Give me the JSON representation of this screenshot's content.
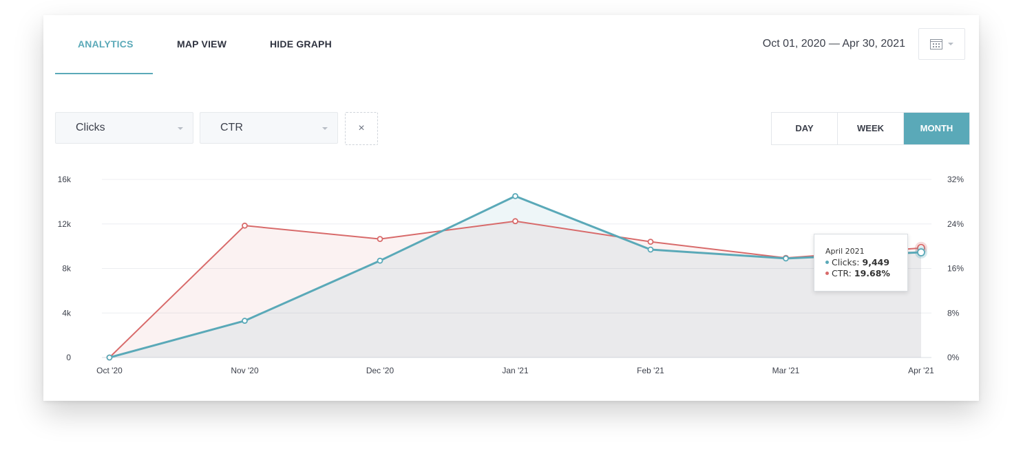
{
  "tabs": [
    {
      "label": "ANALYTICS",
      "active": true
    },
    {
      "label": "MAP VIEW",
      "active": false
    },
    {
      "label": "HIDE GRAPH",
      "active": false
    }
  ],
  "date_range": "Oct 01, 2020 — Apr 30, 2021",
  "calendar_icon": "calendar-icon",
  "metric_selects": [
    {
      "value": "Clicks"
    },
    {
      "value": "CTR"
    }
  ],
  "remove_label": "×",
  "granularity": [
    {
      "label": "DAY",
      "active": false
    },
    {
      "label": "WEEK",
      "active": false
    },
    {
      "label": "MONTH",
      "active": true
    }
  ],
  "colors": {
    "accent": "#5aa9b8",
    "clicks": "#5aa9b8",
    "ctr": "#d86a6a"
  },
  "tooltip": {
    "title": "April 2021",
    "clicks_label": "Clicks:",
    "clicks_value": "9,449",
    "ctr_label": "CTR:",
    "ctr_value": "19.68%"
  },
  "chart_data": {
    "type": "line",
    "categories": [
      "Oct '20",
      "Nov '20",
      "Dec '20",
      "Jan '21",
      "Feb '21",
      "Mar '21",
      "Apr '21"
    ],
    "series": [
      {
        "name": "Clicks",
        "axis": "left",
        "values": [
          0,
          3300,
          8700,
          14500,
          9700,
          8900,
          9449
        ]
      },
      {
        "name": "CTR",
        "axis": "right",
        "values": [
          0,
          23.7,
          21.3,
          24.5,
          20.8,
          17.9,
          19.68
        ]
      }
    ],
    "y_left": {
      "min": 0,
      "max": 16000,
      "ticks": [
        "0",
        "4k",
        "8k",
        "12k",
        "16k"
      ]
    },
    "y_right": {
      "min": 0,
      "max": 32,
      "ticks": [
        "0%",
        "8%",
        "16%",
        "24%",
        "32%"
      ]
    },
    "grid": true,
    "area_fill": true
  }
}
